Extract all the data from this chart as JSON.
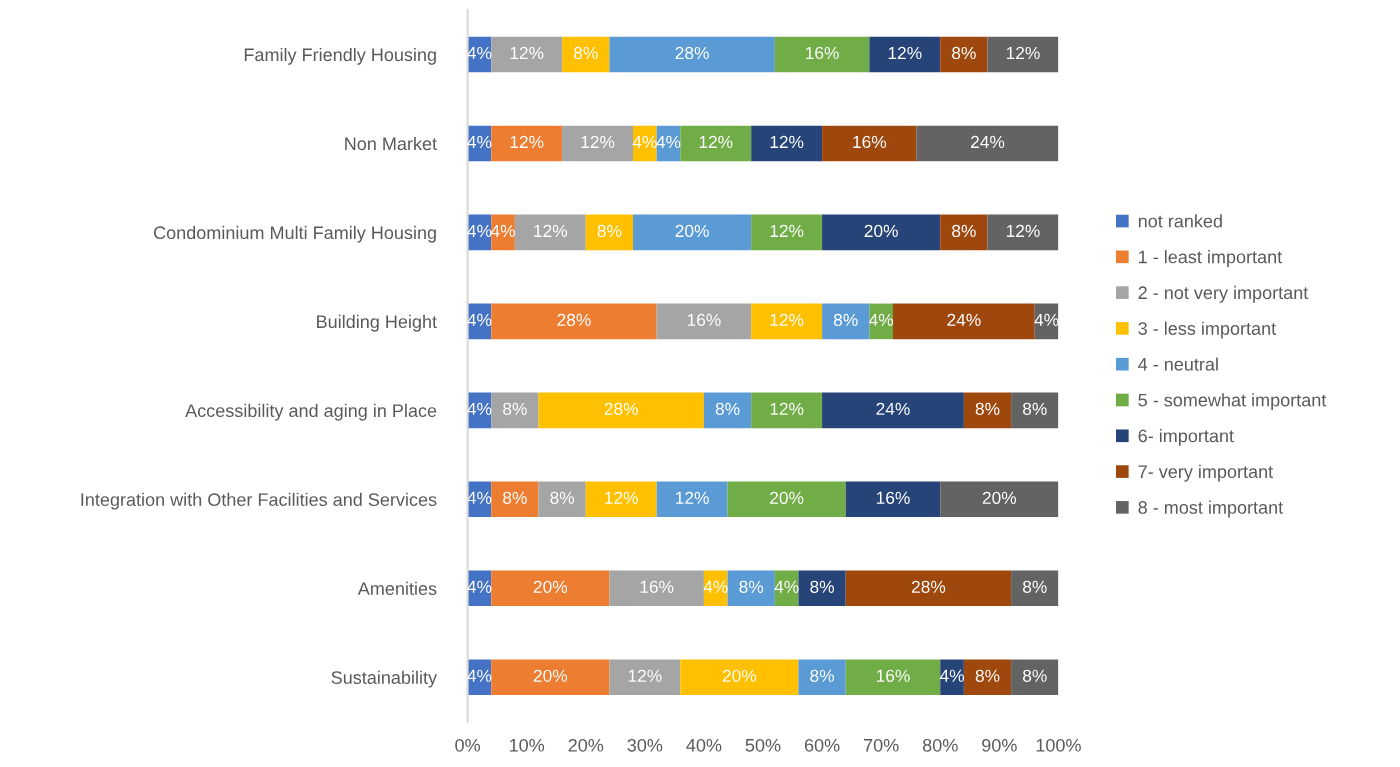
{
  "chart_data": {
    "type": "bar",
    "orientation": "horizontal",
    "stacked": true,
    "categories": [
      "Family Friendly Housing",
      "Non Market",
      "Condominium Multi Family Housing",
      "Building Height",
      "Accessibility and aging in Place",
      "Integration with Other Facilities and Services",
      "Amenities",
      "Sustainability"
    ],
    "series": [
      {
        "name": "not ranked",
        "color": "#4472c4",
        "values": [
          4,
          4,
          4,
          4,
          4,
          4,
          4,
          4
        ],
        "value_labels": [
          "4%",
          "4%",
          "4%",
          "4%",
          "4%",
          "4%",
          "4%",
          "4%"
        ]
      },
      {
        "name": "1 - least important",
        "color": "#ed7d31",
        "values": [
          null,
          12,
          4,
          28,
          null,
          8,
          20,
          20
        ],
        "value_labels": [
          null,
          "12%",
          "4%",
          "28%",
          null,
          "8%",
          "20%",
          "20%"
        ]
      },
      {
        "name": "2 - not very important",
        "color": "#a5a5a5",
        "values": [
          12,
          12,
          12,
          16,
          8,
          8,
          16,
          12
        ],
        "value_labels": [
          "12%",
          "12%",
          "12%",
          "16%",
          "8%",
          "8%",
          "16%",
          "12%"
        ]
      },
      {
        "name": "3 - less important",
        "color": "#ffc000",
        "values": [
          8,
          4,
          8,
          12,
          28,
          12,
          4,
          20
        ],
        "value_labels": [
          "8%",
          "4%",
          "8%",
          "12%",
          "28%",
          "12%",
          "4%",
          "20%"
        ]
      },
      {
        "name": "4 - neutral",
        "color": "#5b9bd5",
        "values": [
          28,
          4,
          20,
          8,
          8,
          12,
          8,
          8
        ],
        "value_labels": [
          "28%",
          "4%",
          "20%",
          "8%",
          "8%",
          "12%",
          "8%",
          "8%"
        ]
      },
      {
        "name": "5 - somewhat important",
        "color": "#70ad47",
        "values": [
          16,
          12,
          12,
          4,
          12,
          20,
          4,
          16
        ],
        "value_labels": [
          "16%",
          "12%",
          "12%",
          "4%",
          "12%",
          "20%",
          "4%",
          "16%"
        ]
      },
      {
        "name": "6- important",
        "color": "#264478",
        "values": [
          12,
          12,
          20,
          null,
          24,
          16,
          8,
          4
        ],
        "value_labels": [
          "12%",
          "12%",
          "20%",
          null,
          "24%",
          "16%",
          "8%",
          "4%"
        ]
      },
      {
        "name": "7- very important",
        "color": "#9e480e",
        "values": [
          8,
          16,
          8,
          24,
          8,
          null,
          28,
          8
        ],
        "value_labels": [
          "8%",
          "16%",
          "8%",
          "24%",
          "8%",
          null,
          "28%",
          "8%"
        ]
      },
      {
        "name": "8 - most important",
        "color": "#636363",
        "values": [
          12,
          24,
          12,
          4,
          8,
          20,
          8,
          8
        ],
        "value_labels": [
          "12%",
          "24%",
          "12%",
          "4%",
          "8%",
          "20%",
          "8%",
          "8%"
        ]
      }
    ],
    "xlim": [
      0,
      100
    ],
    "xticks": [
      {
        "value": 0,
        "label": "0%"
      },
      {
        "value": 10,
        "label": "10%"
      },
      {
        "value": 20,
        "label": "20%"
      },
      {
        "value": 30,
        "label": "30%"
      },
      {
        "value": 40,
        "label": "40%"
      },
      {
        "value": 50,
        "label": "50%"
      },
      {
        "value": 60,
        "label": "60%"
      },
      {
        "value": 70,
        "label": "70%"
      },
      {
        "value": 80,
        "label": "80%"
      },
      {
        "value": 90,
        "label": "90%"
      },
      {
        "value": 100,
        "label": "100%"
      }
    ],
    "grid": false,
    "legend": "right"
  }
}
